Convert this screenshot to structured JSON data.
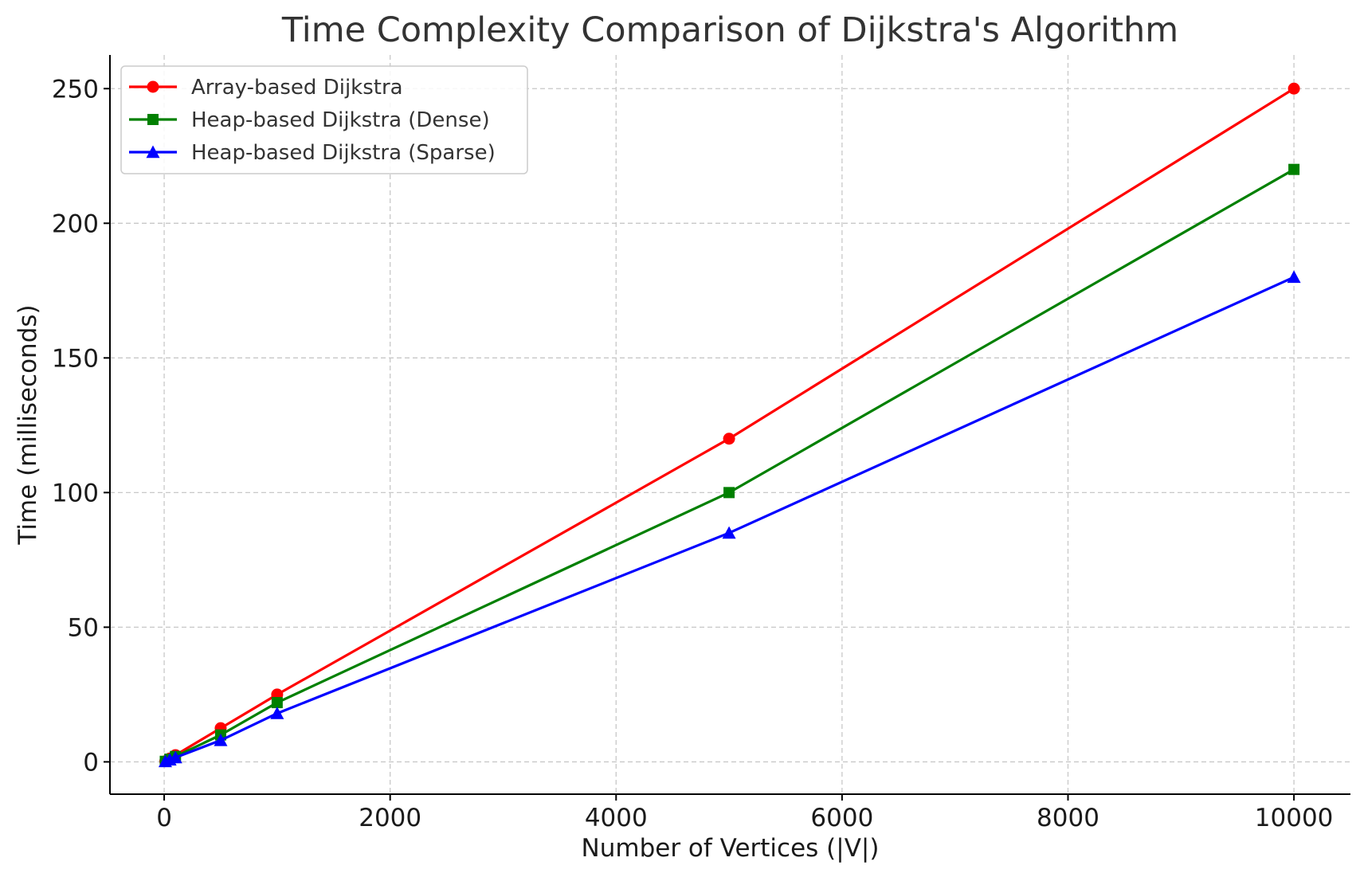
{
  "chart_data": {
    "type": "line",
    "title": "Time Complexity Comparison of Dijkstra's Algorithm",
    "xlabel": "Number of Vertices (|V|)",
    "ylabel": "Time (milliseconds)",
    "xlim": [
      -480,
      10500
    ],
    "ylim": [
      -12,
      262.5
    ],
    "xticks": [
      0,
      2000,
      4000,
      6000,
      8000,
      10000
    ],
    "yticks": [
      0,
      50,
      100,
      150,
      200,
      250
    ],
    "grid": true,
    "legend_position": "top-left",
    "x": [
      10,
      50,
      100,
      500,
      1000,
      5000,
      10000
    ],
    "series": [
      {
        "name": "Array-based Dijkstra",
        "color": "#ff0000",
        "marker": "circle",
        "values": [
          0.25,
          1.25,
          2.5,
          12.5,
          25,
          120,
          250
        ]
      },
      {
        "name": "Heap-based Dijkstra (Dense)",
        "color": "#008000",
        "marker": "square",
        "values": [
          0.2,
          1,
          2,
          10,
          22,
          100,
          220
        ]
      },
      {
        "name": "Heap-based Dijkstra (Sparse)",
        "color": "#0000ff",
        "marker": "triangle",
        "values": [
          0.15,
          0.8,
          1.6,
          8,
          18,
          85,
          180
        ]
      }
    ]
  }
}
